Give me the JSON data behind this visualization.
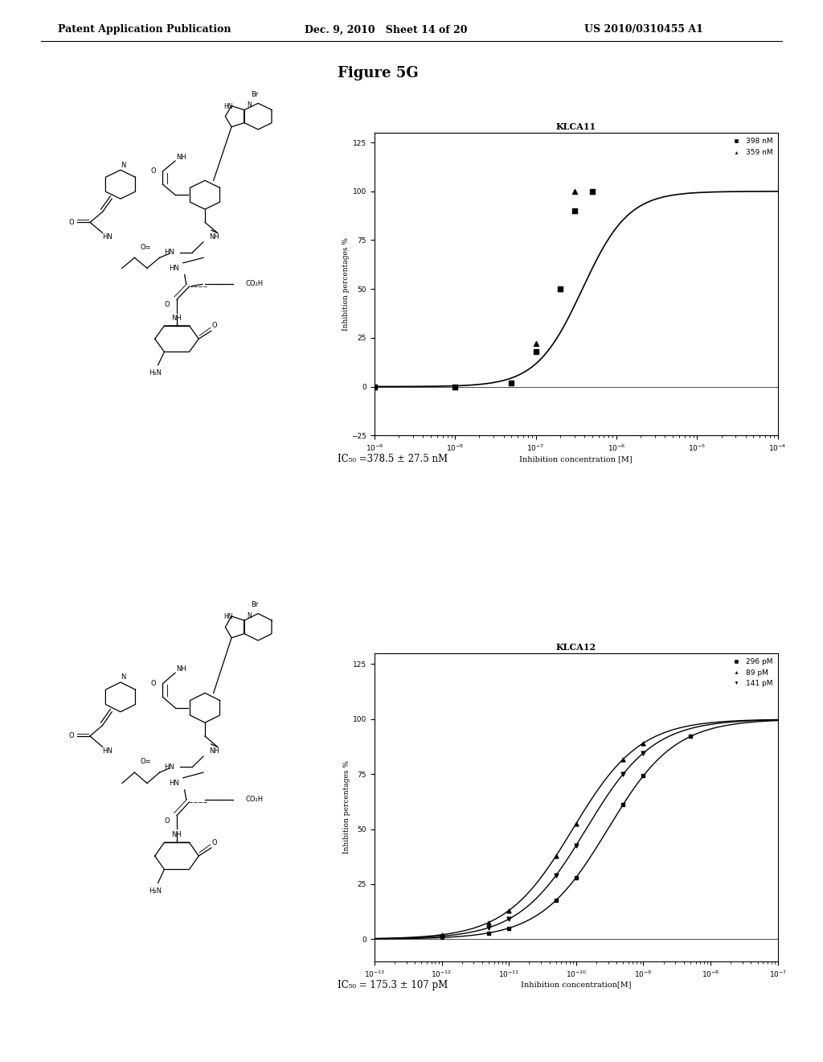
{
  "header_left": "Patent Application Publication",
  "header_mid": "Dec. 9, 2010   Sheet 14 of 20",
  "header_right": "US 2010/0310455 A1",
  "figure_title": "Figure 5G",
  "plot1_title": "KLCA11",
  "plot1_xlabel": "Inhibition concentration [M]",
  "plot1_ylabel": "Inhibition percentages %",
  "plot1_ic50": "IC₅₀ =378.5 ± 27.5 nM",
  "plot1_legend": [
    "398 nM",
    "359 nM"
  ],
  "plot1_ylim": [
    -25,
    130
  ],
  "plot1_yticks": [
    -25,
    0,
    25,
    50,
    75,
    100,
    125
  ],
  "plot2_title": "KLCA12",
  "plot2_xlabel": "Inhibition concentration[M]",
  "plot2_ylabel": "Inhibition percentages %",
  "plot2_ic50": "IC₅₀ = 175.3 ± 107 pM",
  "plot2_legend": [
    "296 pM",
    "89 pM",
    "141 pM"
  ],
  "plot2_ylim": [
    -10,
    130
  ],
  "plot2_yticks": [
    0,
    25,
    50,
    75,
    100,
    125
  ],
  "bg_color": "#ffffff",
  "line_color": "#000000",
  "text_color": "#000000"
}
